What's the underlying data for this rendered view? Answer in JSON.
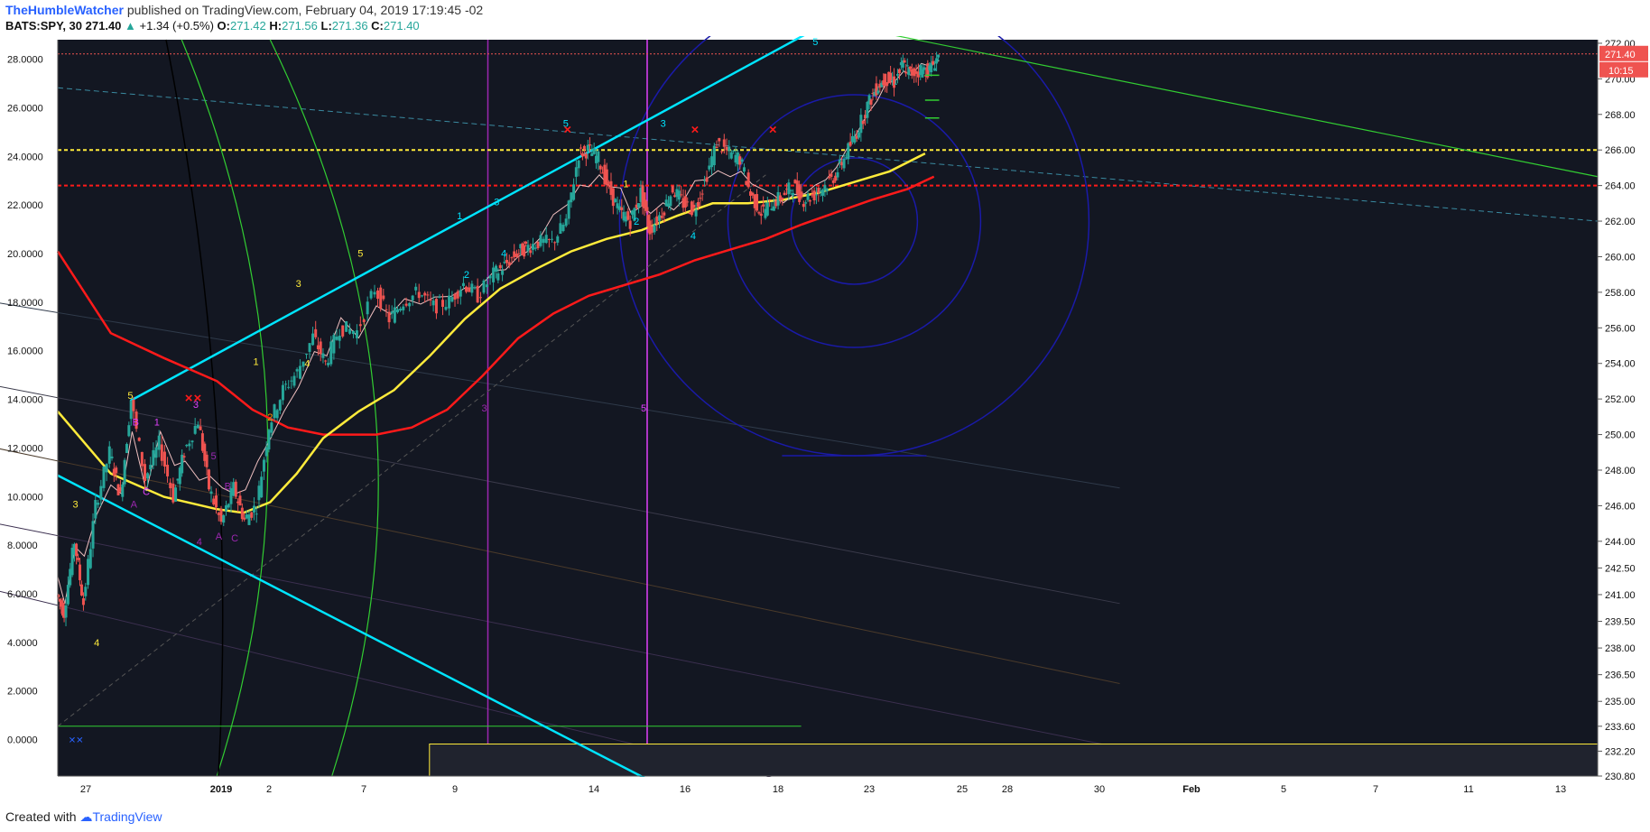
{
  "header": {
    "author": "TheHumbleWatcher",
    "published_text": "published on TradingView.com, February 04, 2019 17:19:45 -02",
    "symbol": "BATS:SPY, 30",
    "change_arrow": "▲",
    "change": "+1.34 (+0.5%)",
    "o_label": "O:",
    "o_value": "271.42",
    "h_label": "H:",
    "h_value": "271.56",
    "l_label": "L:",
    "l_value": "271.36",
    "c_label": "C:",
    "c_value": "271.40"
  },
  "footer": {
    "created_with": "Created with",
    "brand": "TradingView"
  },
  "colors": {
    "background": "#131722",
    "price_up": "#26a69a",
    "price_down": "#ef5350",
    "channel": "#00e5ff",
    "ma_yellow": "#ffeb3b",
    "ma_red": "#ff1a1a",
    "green_line": "#32cd32",
    "magenta": "#e040fb",
    "violet": "#9c27b0",
    "circles": "#1a1aa8"
  },
  "chart_data": {
    "type": "line",
    "title": "",
    "left_axis": {
      "ticks": [
        "28.0000",
        "26.0000",
        "24.0000",
        "22.0000",
        "20.0000",
        "18.0000",
        "16.0000",
        "14.0000",
        "12.0000",
        "10.0000",
        "8.0000",
        "6.0000",
        "4.0000",
        "2.0000",
        "0.0000"
      ],
      "range": [
        -1.5,
        28.8
      ]
    },
    "right_axis": {
      "ticks": [
        "272.00",
        "270.00",
        "268.00",
        "266.00",
        "264.00",
        "262.00",
        "260.00",
        "258.00",
        "256.00",
        "254.00",
        "252.00",
        "250.00",
        "248.00",
        "246.00",
        "244.00",
        "242.50",
        "241.00",
        "239.50",
        "238.00",
        "236.50",
        "235.00",
        "233.60",
        "232.20",
        "230.80"
      ],
      "range": [
        230.8,
        272.2
      ]
    },
    "x_ticks": [
      "27",
      "2019",
      "2",
      "7",
      "9",
      "14",
      "16",
      "18",
      "23",
      "25",
      "28",
      "30",
      "Feb",
      "5",
      "7",
      "11",
      "13"
    ],
    "last_price": "271.40",
    "countdown": "10:15",
    "price_path": [
      [
        0.0,
        241.0
      ],
      [
        0.4,
        240.0
      ],
      [
        1.0,
        244.0
      ],
      [
        1.5,
        240.5
      ],
      [
        2.2,
        246.0
      ],
      [
        3.0,
        249.0
      ],
      [
        3.6,
        246.5
      ],
      [
        4.2,
        252.0
      ],
      [
        5.0,
        247.5
      ],
      [
        5.8,
        249.5
      ],
      [
        6.6,
        246.5
      ],
      [
        7.2,
        249.0
      ],
      [
        8.0,
        250.8
      ],
      [
        8.6,
        247.0
      ],
      [
        9.3,
        245.0
      ],
      [
        10.0,
        247.0
      ],
      [
        10.6,
        245.2
      ],
      [
        11.3,
        246.0
      ],
      [
        12.0,
        250.5
      ],
      [
        12.8,
        252.5
      ],
      [
        13.6,
        253.5
      ],
      [
        14.5,
        255.5
      ],
      [
        15.2,
        254.0
      ],
      [
        16.0,
        256.0
      ],
      [
        17.0,
        255.8
      ],
      [
        18.0,
        258.2
      ],
      [
        18.8,
        256.5
      ],
      [
        19.6,
        257.5
      ],
      [
        20.5,
        258.0
      ],
      [
        21.3,
        257.2
      ],
      [
        22.2,
        257.5
      ],
      [
        23.0,
        258.5
      ],
      [
        23.8,
        257.8
      ],
      [
        24.7,
        259.0
      ],
      [
        25.3,
        259.5
      ],
      [
        26.0,
        260.2
      ],
      [
        26.5,
        260.5
      ],
      [
        27.2,
        260.8
      ],
      [
        28.0,
        260.8
      ],
      [
        28.8,
        262.0
      ],
      [
        29.5,
        265.8
      ],
      [
        30.0,
        266.0
      ],
      [
        30.6,
        265.5
      ],
      [
        31.2,
        263.8
      ],
      [
        31.8,
        262.5
      ],
      [
        32.4,
        262.0
      ],
      [
        33.0,
        263.6
      ],
      [
        33.5,
        261.5
      ],
      [
        34.2,
        262.5
      ],
      [
        34.8,
        263.8
      ],
      [
        35.4,
        263.0
      ],
      [
        36.0,
        262.6
      ],
      [
        36.6,
        264.2
      ],
      [
        37.3,
        266.4
      ],
      [
        38.0,
        265.8
      ],
      [
        38.6,
        265.5
      ],
      [
        39.2,
        263.5
      ],
      [
        39.8,
        262.5
      ],
      [
        40.4,
        263.0
      ],
      [
        41.0,
        263.4
      ],
      [
        41.6,
        264.0
      ],
      [
        42.2,
        263.2
      ],
      [
        42.8,
        263.5
      ],
      [
        43.4,
        264.0
      ],
      [
        44.0,
        264.6
      ],
      [
        44.6,
        265.8
      ],
      [
        45.2,
        267.0
      ],
      [
        45.8,
        268.5
      ],
      [
        46.3,
        269.5
      ],
      [
        46.8,
        270.0
      ],
      [
        47.3,
        269.8
      ],
      [
        47.8,
        270.8
      ],
      [
        48.2,
        270.3
      ],
      [
        48.8,
        270.5
      ],
      [
        49.3,
        270.5
      ],
      [
        49.8,
        271.3
      ]
    ],
    "ma_yellow_path": [
      [
        0.0,
        251.3
      ],
      [
        3.0,
        247.8
      ],
      [
        6.0,
        246.5
      ],
      [
        9.0,
        245.8
      ],
      [
        10.5,
        245.6
      ],
      [
        12.0,
        246.2
      ],
      [
        13.5,
        247.8
      ],
      [
        15.0,
        249.8
      ],
      [
        17.0,
        251.3
      ],
      [
        19.0,
        252.5
      ],
      [
        21.0,
        254.4
      ],
      [
        23.0,
        256.5
      ],
      [
        25.0,
        258.2
      ],
      [
        27.0,
        259.3
      ],
      [
        29.0,
        260.3
      ],
      [
        31.0,
        261.0
      ],
      [
        33.0,
        261.5
      ],
      [
        35.0,
        262.3
      ],
      [
        37.0,
        263.0
      ],
      [
        39.0,
        263.0
      ],
      [
        41.0,
        263.2
      ],
      [
        43.0,
        263.6
      ],
      [
        45.0,
        264.2
      ],
      [
        47.0,
        264.8
      ],
      [
        49.0,
        265.8
      ]
    ],
    "ma_red_path": [
      [
        0.0,
        260.3
      ],
      [
        3.0,
        255.7
      ],
      [
        6.0,
        254.3
      ],
      [
        9.0,
        253.0
      ],
      [
        11.0,
        251.4
      ],
      [
        13.0,
        250.4
      ],
      [
        15.0,
        250.0
      ],
      [
        18.0,
        250.0
      ],
      [
        20.0,
        250.4
      ],
      [
        22.0,
        251.4
      ],
      [
        24.0,
        253.3
      ],
      [
        26.0,
        255.4
      ],
      [
        28.0,
        256.8
      ],
      [
        30.0,
        257.8
      ],
      [
        32.0,
        258.4
      ],
      [
        34.0,
        259.0
      ],
      [
        36.0,
        259.8
      ],
      [
        38.0,
        260.4
      ],
      [
        40.0,
        261.0
      ],
      [
        42.0,
        261.8
      ],
      [
        44.0,
        262.5
      ],
      [
        46.0,
        263.2
      ],
      [
        48.0,
        263.8
      ],
      [
        49.5,
        264.5
      ]
    ],
    "levels": [
      {
        "name": "yellow-dotted",
        "value": 266.0
      },
      {
        "name": "red-dotted",
        "value": 264.0
      },
      {
        "name": "last-price-line",
        "value": 271.4
      }
    ],
    "wave_labels": [
      {
        "t": "3",
        "x": 1.0,
        "y": 245.9,
        "c": "#ffeb3b"
      },
      {
        "t": "4",
        "x": 2.2,
        "y": 238.1,
        "c": "#ffeb3b"
      },
      {
        "t": "5",
        "x": 4.1,
        "y": 252.0,
        "c": "#ffeb3b"
      },
      {
        "t": "B",
        "x": 4.4,
        "y": 250.5,
        "c": "#e040fb"
      },
      {
        "t": "1",
        "x": 5.6,
        "y": 250.5,
        "c": "#e040fb"
      },
      {
        "t": "C",
        "x": 5.0,
        "y": 246.6,
        "c": "#e040fb"
      },
      {
        "t": "A",
        "x": 4.3,
        "y": 245.9,
        "c": "#9c27b0"
      },
      {
        "t": "3",
        "x": 7.8,
        "y": 251.5,
        "c": "#e040fb"
      },
      {
        "t": "5",
        "x": 8.8,
        "y": 248.6,
        "c": "#9c27b0"
      },
      {
        "t": "B",
        "x": 9.6,
        "y": 246.9,
        "c": "#9c27b0"
      },
      {
        "t": "4",
        "x": 8.0,
        "y": 243.8,
        "c": "#9c27b0"
      },
      {
        "t": "C",
        "x": 10.0,
        "y": 244.0,
        "c": "#9c27b0"
      },
      {
        "t": "A",
        "x": 9.1,
        "y": 244.1,
        "c": "#9c27b0"
      },
      {
        "t": "1",
        "x": 11.2,
        "y": 253.9,
        "c": "#ffeb3b"
      },
      {
        "t": "2",
        "x": 12.0,
        "y": 250.8,
        "c": "#ff9800"
      },
      {
        "t": "3",
        "x": 13.6,
        "y": 258.3,
        "c": "#ffeb3b"
      },
      {
        "t": "4",
        "x": 14.1,
        "y": 253.8,
        "c": "#ffeb3b"
      },
      {
        "t": "5",
        "x": 17.1,
        "y": 260.0,
        "c": "#ffeb3b"
      },
      {
        "t": "1",
        "x": 22.7,
        "y": 262.1,
        "c": "#00e5ff"
      },
      {
        "t": "2",
        "x": 23.1,
        "y": 258.8,
        "c": "#00e5ff"
      },
      {
        "t": "3",
        "x": 24.8,
        "y": 262.9,
        "c": "#00e5ff"
      },
      {
        "t": "4",
        "x": 25.2,
        "y": 260.0,
        "c": "#00e5ff"
      },
      {
        "t": "5",
        "x": 28.7,
        "y": 267.3,
        "c": "#00e5ff"
      },
      {
        "t": "1",
        "x": 32.1,
        "y": 263.9,
        "c": "#ffeb3b"
      },
      {
        "t": "2",
        "x": 32.7,
        "y": 261.8,
        "c": "#00e5ff"
      },
      {
        "t": "3",
        "x": 34.2,
        "y": 267.3,
        "c": "#00e5ff"
      },
      {
        "t": "4",
        "x": 35.9,
        "y": 261.0,
        "c": "#00e5ff"
      },
      {
        "t": "5",
        "x": 42.8,
        "y": 271.9,
        "c": "#00e5ff"
      },
      {
        "t": "3",
        "x": 24.1,
        "y": 251.3,
        "c": "#9c27b0"
      },
      {
        "t": "5",
        "x": 33.1,
        "y": 251.3,
        "c": "#e040fb"
      }
    ],
    "x_marks": [
      {
        "x": 7.4,
        "y": 251.8
      },
      {
        "x": 7.9,
        "y": 251.8
      },
      {
        "x": 28.8,
        "y": 266.9
      },
      {
        "x": 36.0,
        "y": 266.9
      },
      {
        "x": 40.4,
        "y": 266.9
      }
    ]
  }
}
